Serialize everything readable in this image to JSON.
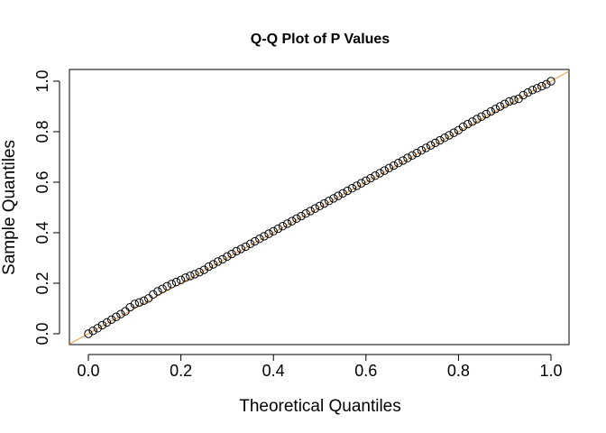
{
  "chart_data": {
    "type": "scatter",
    "title": "Q-Q Plot of P Values",
    "xlabel": "Theoretical Quantiles",
    "ylabel": "Sample Quantiles",
    "xlim": [
      0.0,
      1.0
    ],
    "ylim": [
      0.0,
      1.0
    ],
    "x_ticks": [
      "0.0",
      "0.2",
      "0.4",
      "0.6",
      "0.8",
      "1.0"
    ],
    "y_ticks": [
      "0.0",
      "0.2",
      "0.4",
      "0.6",
      "0.8",
      "1.0"
    ],
    "grid": false,
    "legend": "none",
    "reference_line": {
      "slope": 1,
      "intercept": 0,
      "color": "#E89A3C"
    },
    "point_style": {
      "shape": "open-circle",
      "stroke": "#000000"
    },
    "n_points": 101,
    "x": [
      0.0,
      0.01,
      0.02,
      0.03,
      0.04,
      0.05,
      0.06,
      0.07,
      0.08,
      0.09,
      0.1,
      0.11,
      0.12,
      0.13,
      0.14,
      0.15,
      0.16,
      0.17,
      0.18,
      0.19,
      0.2,
      0.21,
      0.22,
      0.23,
      0.24,
      0.25,
      0.26,
      0.27,
      0.28,
      0.29,
      0.3,
      0.31,
      0.32,
      0.33,
      0.34,
      0.35,
      0.36,
      0.37,
      0.38,
      0.39,
      0.4,
      0.41,
      0.42,
      0.43,
      0.44,
      0.45,
      0.46,
      0.47,
      0.48,
      0.49,
      0.5,
      0.51,
      0.52,
      0.53,
      0.54,
      0.55,
      0.56,
      0.57,
      0.58,
      0.59,
      0.6,
      0.61,
      0.62,
      0.63,
      0.64,
      0.65,
      0.66,
      0.67,
      0.68,
      0.69,
      0.7,
      0.71,
      0.72,
      0.73,
      0.74,
      0.75,
      0.76,
      0.77,
      0.78,
      0.79,
      0.8,
      0.81,
      0.82,
      0.83,
      0.84,
      0.85,
      0.86,
      0.87,
      0.88,
      0.89,
      0.9,
      0.91,
      0.92,
      0.93,
      0.94,
      0.95,
      0.96,
      0.97,
      0.98,
      0.99,
      1.0
    ],
    "y": [
      0.0,
      0.012,
      0.022,
      0.034,
      0.045,
      0.056,
      0.067,
      0.078,
      0.089,
      0.105,
      0.118,
      0.124,
      0.131,
      0.14,
      0.156,
      0.168,
      0.178,
      0.188,
      0.197,
      0.205,
      0.213,
      0.222,
      0.229,
      0.236,
      0.244,
      0.253,
      0.266,
      0.275,
      0.286,
      0.295,
      0.306,
      0.316,
      0.327,
      0.336,
      0.345,
      0.356,
      0.366,
      0.376,
      0.386,
      0.396,
      0.406,
      0.416,
      0.426,
      0.436,
      0.446,
      0.456,
      0.466,
      0.476,
      0.486,
      0.496,
      0.506,
      0.516,
      0.526,
      0.536,
      0.546,
      0.556,
      0.566,
      0.576,
      0.586,
      0.596,
      0.606,
      0.616,
      0.626,
      0.636,
      0.646,
      0.656,
      0.666,
      0.676,
      0.686,
      0.696,
      0.706,
      0.716,
      0.726,
      0.736,
      0.746,
      0.756,
      0.766,
      0.776,
      0.786,
      0.796,
      0.806,
      0.82,
      0.83,
      0.84,
      0.85,
      0.86,
      0.87,
      0.88,
      0.89,
      0.9,
      0.91,
      0.92,
      0.925,
      0.93,
      0.945,
      0.955,
      0.965,
      0.972,
      0.98,
      0.988,
      1.0
    ]
  }
}
